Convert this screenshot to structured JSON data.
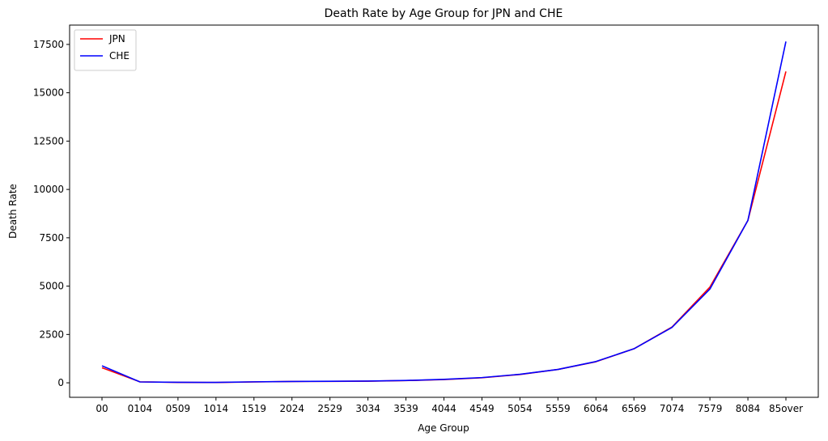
{
  "chart_data": {
    "type": "line",
    "title": "Death Rate by Age Group for JPN and CHE",
    "xlabel": "Age Group",
    "ylabel": "Death Rate",
    "categories": [
      "00",
      "0104",
      "0509",
      "1014",
      "1519",
      "2024",
      "2529",
      "3034",
      "3539",
      "4044",
      "4549",
      "5054",
      "5559",
      "6064",
      "6569",
      "7074",
      "7579",
      "8084",
      "85over"
    ],
    "ylim": [
      -750,
      18500
    ],
    "yticks": [
      0,
      2500,
      5000,
      7500,
      10000,
      12500,
      15000,
      17500
    ],
    "grid": false,
    "legend_position": "top-left",
    "series": [
      {
        "name": "JPN",
        "color": "#ff0000",
        "values": [
          780,
          50,
          20,
          15,
          45,
          70,
          75,
          85,
          115,
          170,
          260,
          430,
          690,
          1090,
          1760,
          2880,
          4950,
          8400,
          16100
        ]
      },
      {
        "name": "CHE",
        "color": "#0000ff",
        "values": [
          880,
          45,
          25,
          20,
          50,
          70,
          80,
          90,
          120,
          180,
          270,
          440,
          690,
          1100,
          1760,
          2860,
          4850,
          8400,
          17650
        ]
      }
    ]
  }
}
